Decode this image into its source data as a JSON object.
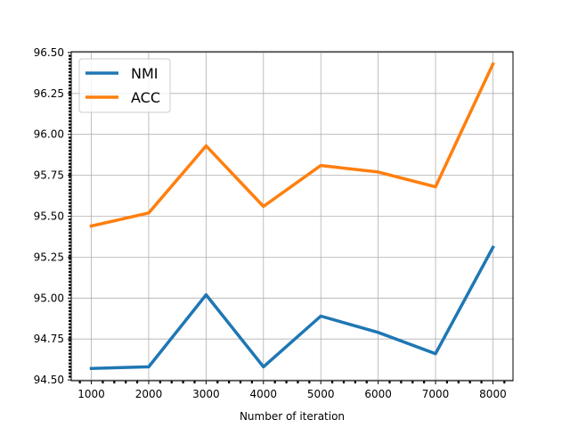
{
  "chart_data": {
    "type": "line",
    "x": [
      1000,
      2000,
      3000,
      4000,
      5000,
      6000,
      7000,
      8000
    ],
    "series": [
      {
        "name": "NMI",
        "color": "#1f77b4",
        "values": [
          94.57,
          94.58,
          95.02,
          94.58,
          94.89,
          94.79,
          94.66,
          95.31
        ]
      },
      {
        "name": "ACC",
        "color": "#ff7f0e",
        "values": [
          95.44,
          95.52,
          95.93,
          95.56,
          95.81,
          95.77,
          95.68,
          96.43
        ]
      }
    ],
    "xlabel": "Number of iteration",
    "ylabel": "",
    "title": "",
    "xlim": [
      650,
      8350
    ],
    "ylim": [
      94.495,
      96.505
    ],
    "xticks": [
      "1000",
      "2000",
      "3000",
      "4000",
      "5000",
      "6000",
      "7000",
      "8000"
    ],
    "yticks": [
      "94.50",
      "94.75",
      "95.00",
      "95.25",
      "95.50",
      "95.75",
      "96.00",
      "96.25",
      "96.50"
    ],
    "grid": true,
    "legend": "top-left",
    "minor_ticks": true
  }
}
